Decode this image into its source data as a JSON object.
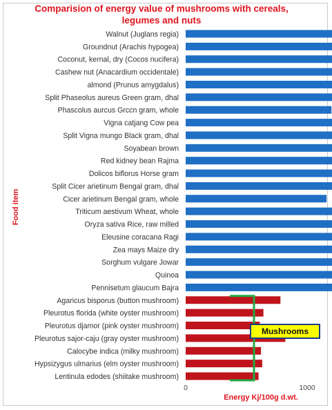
{
  "chart_data": {
    "type": "bar",
    "orientation": "horizontal",
    "title_lines": [
      "Comparision of energy value of mushrooms  with cereals,",
      "legumes and nuts"
    ],
    "xlabel": "Energy  Kj/100g  d.wt.",
    "ylabel": "Food item",
    "xlim": [
      0,
      3000
    ],
    "xticks": [
      "0",
      "1000",
      "2000",
      "3000"
    ],
    "grid": false,
    "colors": {
      "plant": "#1f6fc5",
      "mushroom": "#c0141c",
      "title": "#e0141e",
      "annotation_fill": "#ffff00",
      "annotation_border": "#1a3c8a",
      "bracket": "#22aa44"
    },
    "categories": [
      "Walnut (Juglans regia)",
      "Groundnut  (Arachis hypogea)",
      "Coconut, kernal, dry (Cocos nucifera)",
      "Cashew nut (Anacardium occidentale)",
      "almond (Prunus amygdalus)",
      "Split Phaseolus aureus Green gram, dhal",
      "Phascolus aurcus Grccn gram, whole",
      "Vigna catjang Cow pea",
      "Split Vigna mungo Black gram, dhal",
      "Soyabean brown",
      "Red kidney bean Rajma",
      "Dolicos biflorus Horse gram",
      "Split Cicer arietinum Bengal gram, dhal",
      "Cicer arietinum Bengal gram, whole",
      "Triticum aestivum Wheat, whole",
      "Oryza sativa Rice, raw milled",
      "Eleusine coracana Ragi",
      "Zea mays Maize dry",
      "Sorghum vulgare Jowar",
      "Quinoa",
      "Pennisetum glaucum Bajra",
      "Agaricus bisporus (button mushroom)",
      "Pleurotus florida (white oyster mushroom)",
      "Pleurotus djamor (pink oyster mushroom)",
      "Pleurotus sajor-caju (gray oyster mushroom)",
      "Calocybe indica  (milky mushroom)",
      "Hypsizygus ulmarius (elm oyster mushroom)",
      "Lentinula edodes  (shiitake mushroom)"
    ],
    "values": [
      2760,
      2120,
      2530,
      2360,
      2480,
      1330,
      1200,
      1310,
      1330,
      1560,
      1230,
      1350,
      1350,
      1160,
      1310,
      1460,
      1320,
      1380,
      1390,
      1360,
      1430,
      780,
      640,
      610,
      820,
      620,
      630,
      600
    ],
    "group": [
      "plant",
      "plant",
      "plant",
      "plant",
      "plant",
      "plant",
      "plant",
      "plant",
      "plant",
      "plant",
      "plant",
      "plant",
      "plant",
      "plant",
      "plant",
      "plant",
      "plant",
      "plant",
      "plant",
      "plant",
      "plant",
      "mushroom",
      "mushroom",
      "mushroom",
      "mushroom",
      "mushroom",
      "mushroom",
      "mushroom"
    ],
    "annotation": {
      "text": "Mushrooms",
      "brackets_group": "mushroom"
    }
  }
}
